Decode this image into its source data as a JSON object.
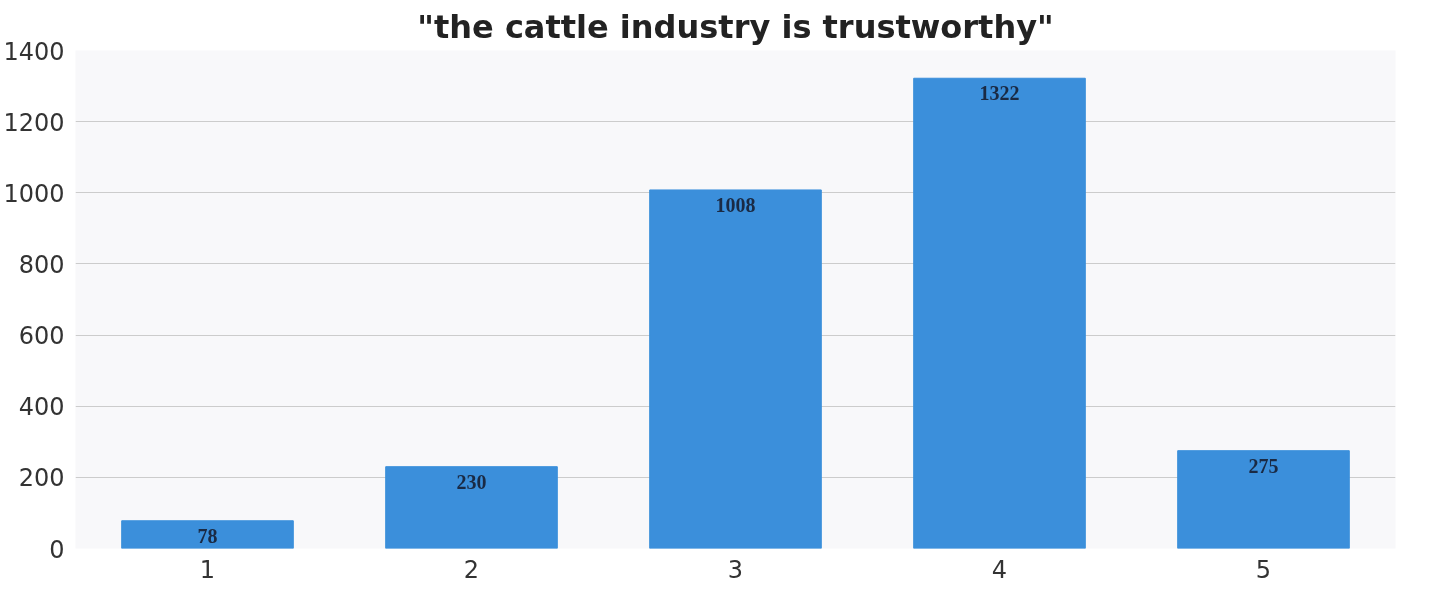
{
  "chart_data": {
    "type": "bar",
    "title": "\"the cattle industry is trustworthy\"",
    "categories": [
      "1",
      "2",
      "3",
      "4",
      "5"
    ],
    "values": [
      78,
      230,
      1008,
      1322,
      275
    ],
    "color": "#3b8fdb",
    "ylim": [
      0,
      1400
    ],
    "yticks": [
      0,
      200,
      400,
      600,
      800,
      1000,
      1200,
      1400
    ],
    "grid": "y",
    "data_labels": true
  }
}
